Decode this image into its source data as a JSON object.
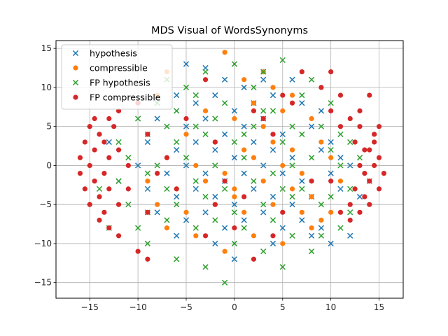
{
  "chart_data": {
    "type": "scatter",
    "title": "MDS Visual of WordsSynonyms",
    "xlabel": "",
    "ylabel": "",
    "xlim": [
      -18.5,
      17.5
    ],
    "ylim": [
      -17,
      16
    ],
    "xticks": [
      -15,
      -10,
      -5,
      0,
      5,
      10,
      15
    ],
    "yticks": [
      -15,
      -10,
      -5,
      0,
      5,
      10,
      15
    ],
    "xtick_labels": [
      "−15",
      "−10",
      "−5",
      "0",
      "5",
      "10",
      "15"
    ],
    "ytick_labels": [
      "−15",
      "−10",
      "−5",
      "0",
      "5",
      "10",
      "15"
    ],
    "grid": true,
    "legend_position": "top-left",
    "series": [
      {
        "name": "hypothesis",
        "marker": "x",
        "color": "#1f77b4",
        "points": [
          [
            -5,
            13
          ],
          [
            -3,
            12.5
          ],
          [
            -1,
            11
          ],
          [
            1,
            10
          ],
          [
            3,
            11
          ],
          [
            6,
            11
          ],
          [
            -6,
            9
          ],
          [
            -4,
            8
          ],
          [
            -2,
            9
          ],
          [
            0,
            7
          ],
          [
            2,
            8
          ],
          [
            4,
            9
          ],
          [
            7,
            8
          ],
          [
            9,
            7
          ],
          [
            -8,
            6
          ],
          [
            -5,
            5
          ],
          [
            -3,
            6
          ],
          [
            -1,
            4
          ],
          [
            1,
            5
          ],
          [
            3,
            6
          ],
          [
            5,
            4
          ],
          [
            8,
            5
          ],
          [
            10,
            3
          ],
          [
            -9,
            3
          ],
          [
            -6,
            2
          ],
          [
            -4,
            3
          ],
          [
            -2,
            2
          ],
          [
            0,
            1
          ],
          [
            2,
            3
          ],
          [
            4,
            2
          ],
          [
            6,
            1
          ],
          [
            9,
            2
          ],
          [
            11,
            1
          ],
          [
            -10,
            0
          ],
          [
            -7,
            -1
          ],
          [
            -5,
            0
          ],
          [
            -3,
            -1
          ],
          [
            -1,
            -2
          ],
          [
            1,
            -1
          ],
          [
            3,
            0
          ],
          [
            5,
            -1
          ],
          [
            7,
            -2
          ],
          [
            10,
            -1
          ],
          [
            12,
            0
          ],
          [
            -9,
            -3
          ],
          [
            -6,
            -4
          ],
          [
            -4,
            -3
          ],
          [
            -2,
            -4
          ],
          [
            0,
            -5
          ],
          [
            2,
            -3
          ],
          [
            4,
            -4
          ],
          [
            6,
            -5
          ],
          [
            8,
            -4
          ],
          [
            11,
            -3
          ],
          [
            -8,
            -6
          ],
          [
            -5,
            -7
          ],
          [
            -3,
            -6
          ],
          [
            -1,
            -8
          ],
          [
            1,
            -7
          ],
          [
            3,
            -6
          ],
          [
            5,
            -8
          ],
          [
            7,
            -7
          ],
          [
            9,
            -8
          ],
          [
            -6,
            -9
          ],
          [
            -2,
            -10
          ],
          [
            0,
            -12
          ],
          [
            4,
            -10
          ],
          [
            8,
            -9
          ],
          [
            10,
            -10
          ],
          [
            -12,
            -2
          ],
          [
            13,
            -4
          ],
          [
            -13,
            3
          ],
          [
            12,
            -9
          ]
        ]
      },
      {
        "name": "compressible",
        "marker": "o",
        "color": "#ff7f0e",
        "points": [
          [
            -1,
            14.5
          ],
          [
            3,
            12
          ],
          [
            1,
            11
          ],
          [
            4,
            10
          ],
          [
            6,
            9
          ],
          [
            2,
            8
          ],
          [
            -3,
            7
          ],
          [
            0,
            6
          ],
          [
            3,
            5
          ],
          [
            5,
            7
          ],
          [
            8,
            6
          ],
          [
            -5,
            4
          ],
          [
            -2,
            3
          ],
          [
            1,
            2
          ],
          [
            4,
            3
          ],
          [
            6,
            2
          ],
          [
            9,
            3
          ],
          [
            -7,
            1
          ],
          [
            -4,
            0
          ],
          [
            -1,
            -1
          ],
          [
            2,
            1
          ],
          [
            5,
            0
          ],
          [
            7,
            -1
          ],
          [
            10,
            1
          ],
          [
            -9,
            -2
          ],
          [
            -6,
            -3
          ],
          [
            -3,
            -2
          ],
          [
            0,
            -3
          ],
          [
            3,
            -2
          ],
          [
            6,
            -3
          ],
          [
            8,
            -4
          ],
          [
            11,
            -2
          ],
          [
            -8,
            -5
          ],
          [
            -5,
            -6
          ],
          [
            -2,
            -5
          ],
          [
            1,
            -6
          ],
          [
            4,
            -5
          ],
          [
            7,
            -6
          ],
          [
            9,
            -7
          ],
          [
            -7,
            -8
          ],
          [
            -4,
            -9
          ],
          [
            -1,
            -11
          ],
          [
            2,
            -9
          ],
          [
            5,
            -10
          ],
          [
            8,
            -8
          ],
          [
            10,
            -6
          ],
          [
            -8,
            9
          ],
          [
            -7,
            12
          ],
          [
            0,
            -4
          ]
        ]
      },
      {
        "name": "FP hypothesis",
        "marker": "x",
        "color": "#2ca02c",
        "points": [
          [
            -7,
            11
          ],
          [
            -5,
            10
          ],
          [
            -3,
            12
          ],
          [
            0,
            13
          ],
          [
            3,
            12
          ],
          [
            5,
            13.5
          ],
          [
            8,
            11
          ],
          [
            -8,
            8
          ],
          [
            -6,
            7
          ],
          [
            -4,
            9
          ],
          [
            -1,
            8
          ],
          [
            2,
            10
          ],
          [
            4,
            7
          ],
          [
            7,
            9
          ],
          [
            10,
            8
          ],
          [
            -10,
            6
          ],
          [
            -7,
            5
          ],
          [
            -4,
            5
          ],
          [
            -2,
            6
          ],
          [
            1,
            4
          ],
          [
            3,
            7
          ],
          [
            6,
            5
          ],
          [
            9,
            5
          ],
          [
            11,
            4
          ],
          [
            -12,
            3
          ],
          [
            -9,
            4
          ],
          [
            -6,
            3
          ],
          [
            -3,
            4
          ],
          [
            0,
            3
          ],
          [
            2,
            5
          ],
          [
            5,
            3
          ],
          [
            7,
            4
          ],
          [
            10,
            2
          ],
          [
            12,
            3
          ],
          [
            -11,
            1
          ],
          [
            -8,
            0
          ],
          [
            -5,
            1
          ],
          [
            -2,
            0
          ],
          [
            1,
            1
          ],
          [
            4,
            -1
          ],
          [
            6,
            0
          ],
          [
            8,
            1
          ],
          [
            11,
            0
          ],
          [
            13,
            1
          ],
          [
            -12,
            -2
          ],
          [
            -9,
            -1
          ],
          [
            -7,
            -3
          ],
          [
            -4,
            -2
          ],
          [
            -1,
            -3
          ],
          [
            2,
            -2
          ],
          [
            5,
            -3
          ],
          [
            7,
            -3
          ],
          [
            10,
            -4
          ],
          [
            12,
            -3
          ],
          [
            -11,
            -5
          ],
          [
            -9,
            -6
          ],
          [
            -6,
            -5
          ],
          [
            -3,
            -4
          ],
          [
            0,
            -6
          ],
          [
            3,
            -5
          ],
          [
            6,
            -4
          ],
          [
            9,
            -5
          ],
          [
            12,
            -6
          ],
          [
            -10,
            -8
          ],
          [
            -7,
            -7
          ],
          [
            -4,
            -8
          ],
          [
            -2,
            -7
          ],
          [
            1,
            -8
          ],
          [
            4,
            -7
          ],
          [
            6,
            -9
          ],
          [
            9,
            -9
          ],
          [
            11,
            -8
          ],
          [
            -9,
            -10
          ],
          [
            -6,
            -12
          ],
          [
            -3,
            -13
          ],
          [
            0,
            -10
          ],
          [
            3,
            -11
          ],
          [
            5,
            -13
          ],
          [
            8,
            -11
          ],
          [
            -1,
            -15
          ],
          [
            -14,
            -3
          ],
          [
            14,
            -2
          ],
          [
            -13,
            -8
          ]
        ]
      },
      {
        "name": "FP compressible",
        "marker": "o",
        "color": "#d62728",
        "points": [
          [
            -15,
            5
          ],
          [
            -15.5,
            3
          ],
          [
            -16,
            1
          ],
          [
            -16,
            -1
          ],
          [
            -15.5,
            -3
          ],
          [
            -15,
            -5
          ],
          [
            -14,
            -7
          ],
          [
            -14.5,
            6
          ],
          [
            -14,
            4
          ],
          [
            -14.5,
            2
          ],
          [
            -15,
            0
          ],
          [
            -14.5,
            -2
          ],
          [
            -14,
            -4
          ],
          [
            -13.5,
            -6
          ],
          [
            -13,
            -8
          ],
          [
            -13,
            6
          ],
          [
            -13.5,
            3
          ],
          [
            -13,
            1
          ],
          [
            -13.5,
            -1
          ],
          [
            -13,
            -3
          ],
          [
            -12,
            -5
          ],
          [
            -12,
            7
          ],
          [
            -12.5,
            5
          ],
          [
            -12,
            2
          ],
          [
            -11,
            0
          ],
          [
            -11,
            -3
          ],
          [
            -12,
            -9
          ],
          [
            -10,
            8
          ],
          [
            -9,
            4
          ],
          [
            -8,
            -1
          ],
          [
            -9,
            -6
          ],
          [
            -10,
            -11
          ],
          [
            -9,
            -12
          ],
          [
            14,
            9
          ],
          [
            13,
            7
          ],
          [
            15,
            5
          ],
          [
            14.5,
            3
          ],
          [
            15,
            1
          ],
          [
            15.5,
            -1
          ],
          [
            15,
            -3
          ],
          [
            14,
            -5
          ],
          [
            14.5,
            4
          ],
          [
            14,
            2
          ],
          [
            14.5,
            0
          ],
          [
            14,
            -2
          ],
          [
            13.5,
            -4
          ],
          [
            13,
            -6
          ],
          [
            13,
            5
          ],
          [
            13.5,
            2
          ],
          [
            13,
            0
          ],
          [
            13.5,
            -1
          ],
          [
            12.5,
            -3
          ],
          [
            12,
            -5
          ],
          [
            12,
            6
          ],
          [
            12.5,
            3
          ],
          [
            11,
            9
          ],
          [
            10,
            7
          ],
          [
            11,
            5
          ],
          [
            10,
            -2
          ],
          [
            11,
            -6
          ],
          [
            12,
            -7
          ],
          [
            -3,
            11
          ],
          [
            2,
            7
          ],
          [
            3,
            6
          ],
          [
            4,
            4
          ],
          [
            -1,
            -2
          ],
          [
            -2,
            -5
          ],
          [
            1,
            -4
          ],
          [
            -2,
            3
          ],
          [
            7,
            12
          ],
          [
            9,
            10
          ],
          [
            6,
            8
          ],
          [
            8,
            -2
          ],
          [
            5,
            -6
          ],
          [
            4,
            -9
          ],
          [
            0,
            -8
          ],
          [
            2,
            -12
          ],
          [
            -3,
            -9
          ],
          [
            -6,
            -3
          ],
          [
            -7,
            1
          ],
          [
            -5,
            6
          ],
          [
            5,
            9
          ],
          [
            10,
            12
          ]
        ]
      }
    ]
  }
}
